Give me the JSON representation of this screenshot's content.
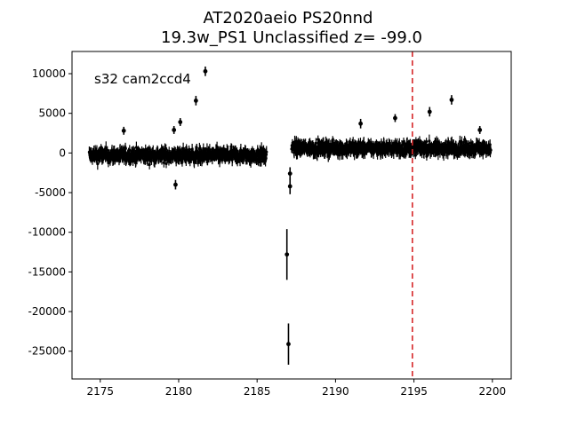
{
  "chart_data": {
    "type": "scatter",
    "title": "AT2020aeio  PS20nnd",
    "subtitle": "19.3w_PS1 Unclassified z= -99.0",
    "annotation": "s32 cam2ccd4",
    "xlabel": "",
    "ylabel": "",
    "xlim": [
      2173.2,
      2201.2
    ],
    "ylim": [
      -28500,
      12800
    ],
    "x_ticks": [
      2175,
      2180,
      2185,
      2190,
      2195,
      2200
    ],
    "y_ticks": [
      10000,
      5000,
      0,
      -5000,
      -10000,
      -15000,
      -20000,
      -25000
    ],
    "grid": false,
    "legend": "none",
    "marker_color": "#000000",
    "vline": {
      "x": 2194.9,
      "color": "#d62728",
      "style": "dashed"
    },
    "bands": [
      {
        "x_start": 2174.3,
        "x_end": 2185.6,
        "center": -300,
        "spread": 1400,
        "err": 700
      },
      {
        "x_start": 2187.2,
        "x_end": 2199.9,
        "center": 600,
        "spread": 1300,
        "err": 700
      }
    ],
    "points": [
      {
        "x": 2176.5,
        "y": 2800,
        "err": 500
      },
      {
        "x": 2179.7,
        "y": 2900,
        "err": 500
      },
      {
        "x": 2180.1,
        "y": 3900,
        "err": 500
      },
      {
        "x": 2179.8,
        "y": -4000,
        "err": 600
      },
      {
        "x": 2181.1,
        "y": 6600,
        "err": 600
      },
      {
        "x": 2181.7,
        "y": 10300,
        "err": 600
      },
      {
        "x": 2186.9,
        "y": -12800,
        "err": 3200
      },
      {
        "x": 2187.0,
        "y": -24100,
        "err": 2600
      },
      {
        "x": 2187.1,
        "y": -4200,
        "err": 1000
      },
      {
        "x": 2187.1,
        "y": -2600,
        "err": 800
      },
      {
        "x": 2191.6,
        "y": 3700,
        "err": 600
      },
      {
        "x": 2193.8,
        "y": 4400,
        "err": 500
      },
      {
        "x": 2196.0,
        "y": 5200,
        "err": 600
      },
      {
        "x": 2197.4,
        "y": 6700,
        "err": 600
      },
      {
        "x": 2199.2,
        "y": 2900,
        "err": 500
      }
    ]
  }
}
